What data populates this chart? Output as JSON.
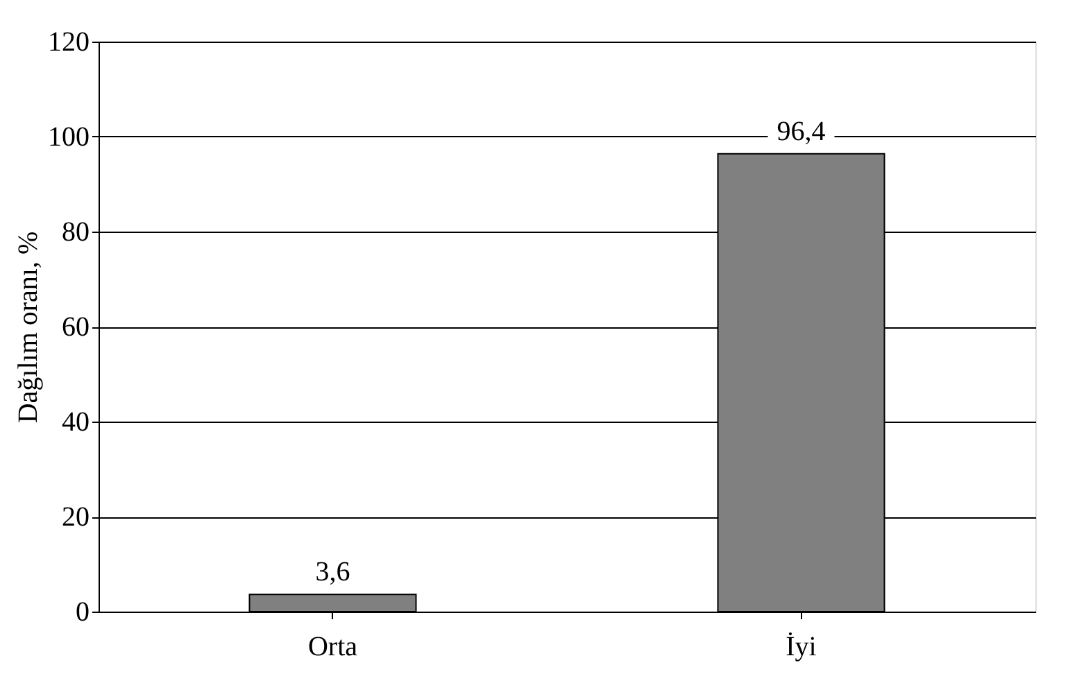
{
  "chart_data": {
    "type": "bar",
    "ylabel": "Dağılım oranı, %",
    "categories": [
      "Orta",
      "İyi"
    ],
    "values": [
      3.6,
      96.4
    ],
    "value_labels": [
      "3,6",
      "96,4"
    ],
    "color": "#808080",
    "ylim": [
      0,
      120
    ],
    "yticks": [
      0,
      20,
      40,
      60,
      80,
      100,
      120
    ],
    "grid": "y"
  }
}
